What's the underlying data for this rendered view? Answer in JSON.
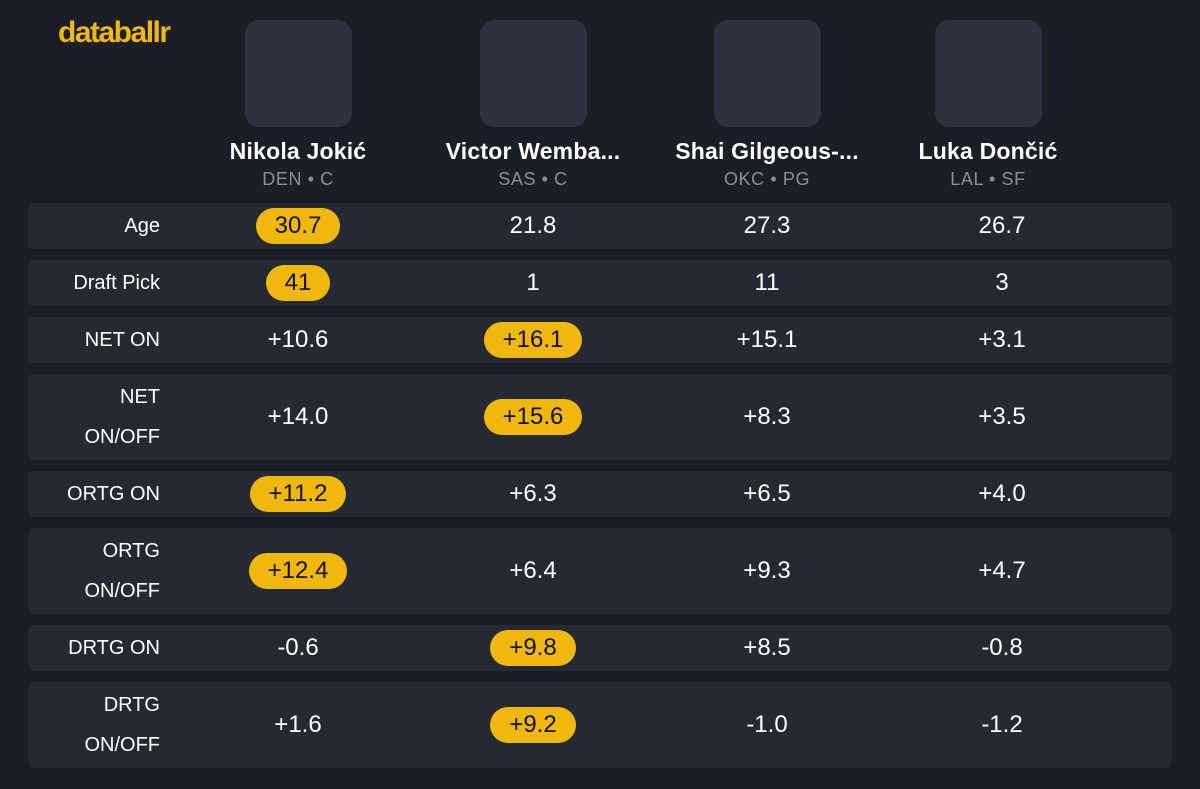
{
  "brand": "databallr",
  "colors": {
    "background": "#1b1e25",
    "row": "#252932",
    "avatar": "#2e3240",
    "accent": "#f0b70e",
    "muted": "#8b8e97"
  },
  "players": [
    {
      "name": "Nikola Jokić",
      "team": "DEN",
      "position": "C",
      "meta": "DEN • C"
    },
    {
      "name": "Victor Wemba...",
      "team": "SAS",
      "position": "C",
      "meta": "SAS • C"
    },
    {
      "name": "Shai Gilgeous-...",
      "team": "OKC",
      "position": "PG",
      "meta": "OKC • PG"
    },
    {
      "name": "Luka Dončić",
      "team": "LAL",
      "position": "SF",
      "meta": "LAL • SF"
    }
  ],
  "rows": [
    {
      "label": "Age",
      "values": [
        "30.7",
        "21.8",
        "27.3",
        "26.7"
      ],
      "highlight": 0
    },
    {
      "label": "Draft Pick",
      "values": [
        "41",
        "1",
        "11",
        "3"
      ],
      "highlight": 0
    },
    {
      "label": "NET ON",
      "values": [
        "+10.6",
        "+16.1",
        "+15.1",
        "+3.1"
      ],
      "highlight": 1
    },
    {
      "label": "NET ON/OFF",
      "values": [
        "+14.0",
        "+15.6",
        "+8.3",
        "+3.5"
      ],
      "highlight": 1
    },
    {
      "label": "ORTG ON",
      "values": [
        "+11.2",
        "+6.3",
        "+6.5",
        "+4.0"
      ],
      "highlight": 0
    },
    {
      "label": "ORTG ON/OFF",
      "values": [
        "+12.4",
        "+6.4",
        "+9.3",
        "+4.7"
      ],
      "highlight": 0
    },
    {
      "label": "DRTG ON",
      "values": [
        "-0.6",
        "+9.8",
        "+8.5",
        "-0.8"
      ],
      "highlight": 1
    },
    {
      "label": "DRTG ON/OFF",
      "values": [
        "+1.6",
        "+9.2",
        "-1.0",
        "-1.2"
      ],
      "highlight": 1
    }
  ]
}
